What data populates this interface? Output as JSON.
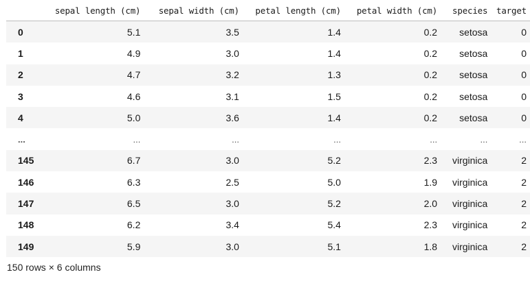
{
  "dataframe": {
    "index_header": "",
    "columns": [
      "sepal length (cm)",
      "sepal width (cm)",
      "petal length (cm)",
      "petal width (cm)",
      "species",
      "target"
    ],
    "rows": [
      {
        "index": "0",
        "values": [
          "5.1",
          "3.5",
          "1.4",
          "0.2",
          "setosa",
          "0"
        ]
      },
      {
        "index": "1",
        "values": [
          "4.9",
          "3.0",
          "1.4",
          "0.2",
          "setosa",
          "0"
        ]
      },
      {
        "index": "2",
        "values": [
          "4.7",
          "3.2",
          "1.3",
          "0.2",
          "setosa",
          "0"
        ]
      },
      {
        "index": "3",
        "values": [
          "4.6",
          "3.1",
          "1.5",
          "0.2",
          "setosa",
          "0"
        ]
      },
      {
        "index": "4",
        "values": [
          "5.0",
          "3.6",
          "1.4",
          "0.2",
          "setosa",
          "0"
        ]
      },
      {
        "index": "...",
        "values": [
          "...",
          "...",
          "...",
          "...",
          "...",
          "..."
        ]
      },
      {
        "index": "145",
        "values": [
          "6.7",
          "3.0",
          "5.2",
          "2.3",
          "virginica",
          "2"
        ]
      },
      {
        "index": "146",
        "values": [
          "6.3",
          "2.5",
          "5.0",
          "1.9",
          "virginica",
          "2"
        ]
      },
      {
        "index": "147",
        "values": [
          "6.5",
          "3.0",
          "5.2",
          "2.0",
          "virginica",
          "2"
        ]
      },
      {
        "index": "148",
        "values": [
          "6.2",
          "3.4",
          "5.4",
          "2.3",
          "virginica",
          "2"
        ]
      },
      {
        "index": "149",
        "values": [
          "5.9",
          "3.0",
          "5.1",
          "1.8",
          "virginica",
          "2"
        ]
      }
    ],
    "shape_text": "150 rows × 6 columns"
  }
}
